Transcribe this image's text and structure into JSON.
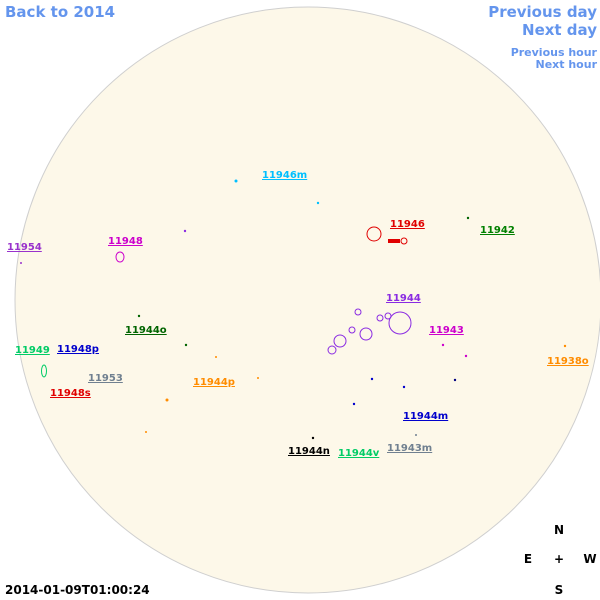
{
  "navigation": {
    "back": "Back to 2014",
    "previous_day": "Previous day",
    "next_day": "Next day",
    "previous_hour": "Previous hour",
    "next_hour": "Next hour"
  },
  "regions": [
    "11946m",
    "11946",
    "11942",
    "11954",
    "11948",
    "11944",
    "11944o",
    "11943",
    "11949",
    "11948p",
    "11938o",
    "11953",
    "11944p",
    "11948s",
    "11944m",
    "11944n",
    "11944v",
    "11943m"
  ],
  "compass": {
    "north": "N",
    "east": "E",
    "center": "+",
    "west": "W",
    "south": "S"
  },
  "timestamp": "2014-01-09T01:00:24"
}
